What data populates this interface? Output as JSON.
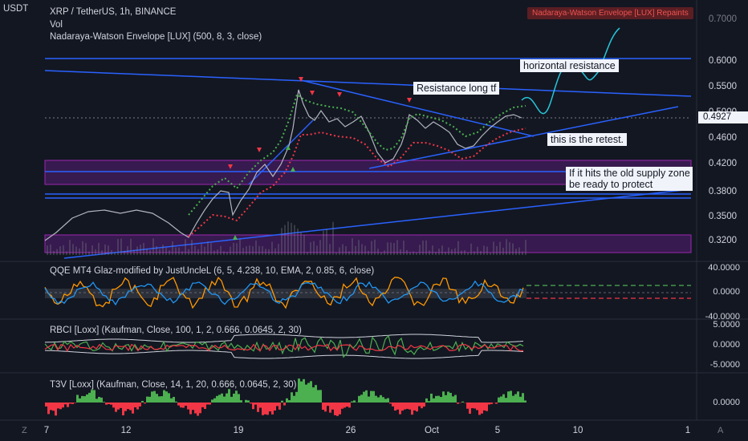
{
  "header": {
    "currency": "USDT",
    "symbol_line": "XRP / TetherUS, 1h, BINANCE",
    "vol_label": "Vol",
    "indicator_line": "Nadaraya-Watson Envelope [LUX] (500, 8, 3, close)",
    "repaint_badge": "Nadaraya-Watson Envelope [LUX] Repaints"
  },
  "price_axis": {
    "labels": [
      "0.7000",
      "0.6000",
      "0.5500",
      "0.5000",
      "0.4600",
      "0.4200",
      "0.3800",
      "0.3500",
      "0.3200"
    ],
    "current_price": "0.4927"
  },
  "annotations": {
    "horizontal_resistance": "horizontal resistance",
    "resistance_long_tf": "Resistance long tf",
    "retest": "this is the retest.",
    "supply_zone_line1": "If it hits the  old supply zone",
    "supply_zone_line2": "be ready to protect"
  },
  "indicators": {
    "qqe": {
      "title": "QQE MT4 Glaz-modified by JustUncleL (6, 5, 4.238, 10, EMA, 2, 0.85, 6, close)",
      "axis": [
        "40.0000",
        "0.0000",
        "-40.0000"
      ]
    },
    "rbci": {
      "title": "RBCI [Loxx] (Kaufman, Close, 100, 1, 2, 0.666, 0.0645, 2, 30)",
      "axis": [
        "5.0000",
        "0.0000",
        "-5.0000"
      ]
    },
    "t3v": {
      "title": "T3V [Loxx] (Kaufman, Close, 14, 1, 20, 0.666, 0.0645, 2, 30)",
      "axis": [
        "0.0000"
      ]
    }
  },
  "time_axis": {
    "labels": [
      "7",
      "12",
      "19",
      "26",
      "Oct",
      "5",
      "10",
      "1"
    ]
  },
  "corner": {
    "left": "Z",
    "right": "A"
  },
  "colors": {
    "background": "#131722",
    "candles": "#b2b5be",
    "trendline": "#2962ff",
    "supply_zone": "#7b1fa2",
    "envelope_upper": "#4caf50",
    "envelope_lower": "#f23645",
    "projection": "#26c6da",
    "qqe_orange": "#ff9800",
    "qqe_blue": "#2196f3"
  }
}
